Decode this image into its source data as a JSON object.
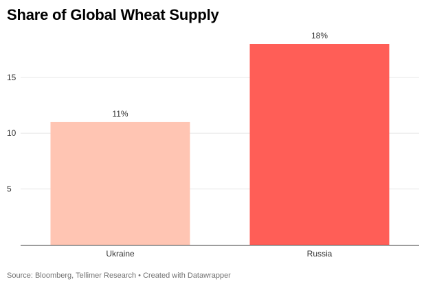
{
  "chart_data": {
    "type": "bar",
    "title": "Share of Global Wheat Supply",
    "categories": [
      "Ukraine",
      "Russia"
    ],
    "values": [
      11,
      18
    ],
    "data_labels": [
      "11%",
      "18%"
    ],
    "bar_colors": [
      "#ffc5b3",
      "#ff5e57"
    ],
    "yticks": [
      5,
      10,
      15
    ],
    "ylim": [
      0,
      18
    ],
    "grid": true,
    "xlabel": "",
    "ylabel": ""
  },
  "footer": {
    "source_text": "Source: Bloomberg, Tellimer Research • Created with Datawrapper"
  },
  "colors": {
    "grid": "#e6e6e6",
    "axis": "#333333",
    "text": "#333333"
  }
}
